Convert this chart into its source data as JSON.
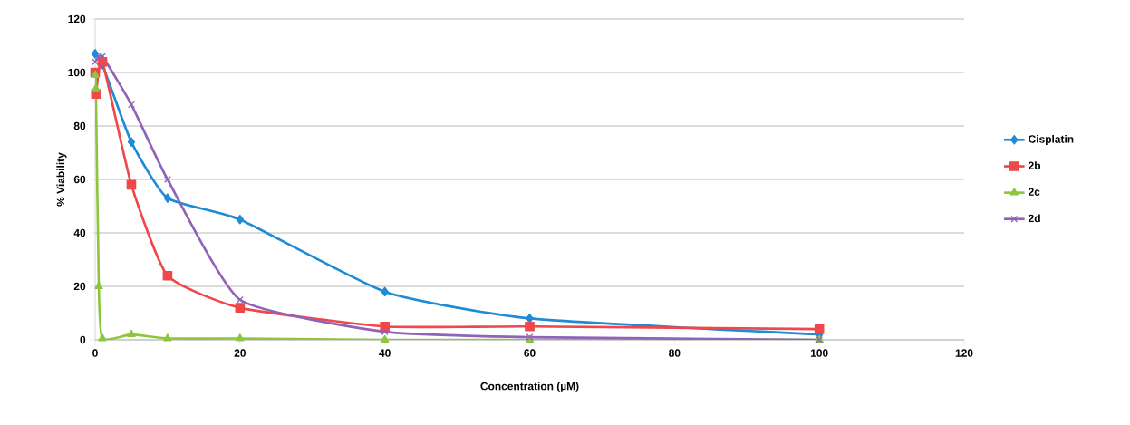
{
  "chart_data": {
    "type": "line",
    "xlabel": "Concentration (µM)",
    "ylabel": "% Viability",
    "xlim": [
      0,
      120
    ],
    "ylim": [
      0,
      120
    ],
    "xticks": [
      0,
      20,
      40,
      60,
      80,
      100,
      120
    ],
    "yticks": [
      0,
      20,
      40,
      60,
      80,
      100,
      120
    ],
    "grid": "y",
    "legend": "right",
    "line_style": "solid",
    "series": [
      {
        "name": "Cisplatin",
        "color": "#1f8ad6",
        "marker": "diamond",
        "x": [
          0,
          1,
          5,
          10,
          20,
          40,
          60,
          100
        ],
        "values": [
          107,
          103,
          74,
          53,
          45,
          18,
          8,
          2
        ]
      },
      {
        "name": "2b",
        "color": "#f0474a",
        "marker": "square",
        "x": [
          0,
          0.1,
          1,
          5,
          10,
          20,
          40,
          60,
          100
        ],
        "values": [
          100,
          92,
          104,
          58,
          24,
          12,
          5,
          5,
          4
        ]
      },
      {
        "name": "2c",
        "color": "#8cc63f",
        "marker": "triangle",
        "x": [
          0,
          0.1,
          0.5,
          1,
          5,
          10,
          20,
          40,
          60,
          100
        ],
        "values": [
          99,
          94,
          20,
          0.5,
          2,
          0.5,
          0.5,
          0,
          0,
          0
        ]
      },
      {
        "name": "2d",
        "color": "#9163b8",
        "marker": "cross",
        "x": [
          0,
          1,
          5,
          10,
          20,
          40,
          60,
          100
        ],
        "values": [
          104,
          106,
          88,
          60,
          15,
          3,
          1,
          0
        ]
      }
    ]
  }
}
